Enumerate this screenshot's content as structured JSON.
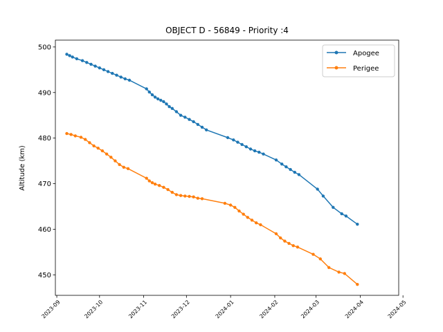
{
  "colors": {
    "apogee": "#1f77b4",
    "perigee": "#ff7f0e"
  },
  "chart_data": {
    "type": "line",
    "title": "OBJECT D - 56849 - Priority :4",
    "xlabel": "",
    "ylabel": "Altitude (km)",
    "xlim": [
      "2023-08-31",
      "2024-04-28"
    ],
    "ylim": [
      445.5,
      501.5
    ],
    "x_ticks": [
      "2023-09",
      "2023-10",
      "2023-11",
      "2023-12",
      "2024-01",
      "2024-02",
      "2024-03",
      "2024-04",
      "2024-05"
    ],
    "y_ticks": [
      450,
      460,
      470,
      480,
      490,
      500
    ],
    "legend": "top-right",
    "grid": false,
    "series": [
      {
        "name": "Apogee",
        "color": "#1f77b4",
        "points": [
          [
            "2023-09-08",
            498.4
          ],
          [
            "2023-09-10",
            498.1
          ],
          [
            "2023-09-12",
            497.8
          ],
          [
            "2023-09-15",
            497.4
          ],
          [
            "2023-09-19",
            497.0
          ],
          [
            "2023-09-22",
            496.6
          ],
          [
            "2023-09-25",
            496.2
          ],
          [
            "2023-09-28",
            495.8
          ],
          [
            "2023-10-01",
            495.4
          ],
          [
            "2023-10-04",
            495.0
          ],
          [
            "2023-10-07",
            494.6
          ],
          [
            "2023-10-10",
            494.2
          ],
          [
            "2023-10-13",
            493.8
          ],
          [
            "2023-10-16",
            493.4
          ],
          [
            "2023-10-19",
            493.0
          ],
          [
            "2023-10-22",
            492.7
          ],
          [
            "2023-11-03",
            490.8
          ],
          [
            "2023-11-05",
            490.1
          ],
          [
            "2023-11-07",
            489.5
          ],
          [
            "2023-11-09",
            489.0
          ],
          [
            "2023-11-11",
            488.6
          ],
          [
            "2023-11-13",
            488.3
          ],
          [
            "2023-11-15",
            488.0
          ],
          [
            "2023-11-17",
            487.5
          ],
          [
            "2023-11-19",
            486.9
          ],
          [
            "2023-11-21",
            486.5
          ],
          [
            "2023-11-24",
            485.8
          ],
          [
            "2023-11-27",
            485.0
          ],
          [
            "2023-11-30",
            484.6
          ],
          [
            "2023-12-03",
            484.1
          ],
          [
            "2023-12-06",
            483.6
          ],
          [
            "2023-12-09",
            483.0
          ],
          [
            "2023-12-12",
            482.4
          ],
          [
            "2023-12-15",
            481.8
          ],
          [
            "2023-12-30",
            480.1
          ],
          [
            "2024-01-03",
            479.6
          ],
          [
            "2024-01-06",
            479.1
          ],
          [
            "2024-01-09",
            478.6
          ],
          [
            "2024-01-12",
            478.1
          ],
          [
            "2024-01-15",
            477.6
          ],
          [
            "2024-01-18",
            477.2
          ],
          [
            "2024-01-21",
            476.9
          ],
          [
            "2024-01-24",
            476.5
          ],
          [
            "2024-02-02",
            475.2
          ],
          [
            "2024-02-06",
            474.3
          ],
          [
            "2024-02-09",
            473.7
          ],
          [
            "2024-02-12",
            473.1
          ],
          [
            "2024-02-15",
            472.5
          ],
          [
            "2024-02-18",
            472.0
          ],
          [
            "2024-03-02",
            468.8
          ],
          [
            "2024-03-06",
            467.3
          ],
          [
            "2024-03-13",
            464.8
          ],
          [
            "2024-03-19",
            463.4
          ],
          [
            "2024-03-22",
            462.9
          ],
          [
            "2024-03-30",
            461.1
          ]
        ]
      },
      {
        "name": "Perigee",
        "color": "#ff7f0e",
        "points": [
          [
            "2023-09-08",
            481.0
          ],
          [
            "2023-09-11",
            480.8
          ],
          [
            "2023-09-14",
            480.5
          ],
          [
            "2023-09-18",
            480.2
          ],
          [
            "2023-09-21",
            479.7
          ],
          [
            "2023-09-24",
            479.0
          ],
          [
            "2023-09-27",
            478.3
          ],
          [
            "2023-09-30",
            477.8
          ],
          [
            "2023-10-03",
            477.2
          ],
          [
            "2023-10-06",
            476.5
          ],
          [
            "2023-10-09",
            475.8
          ],
          [
            "2023-10-12",
            475.0
          ],
          [
            "2023-10-15",
            474.2
          ],
          [
            "2023-10-18",
            473.6
          ],
          [
            "2023-10-21",
            473.3
          ],
          [
            "2023-11-03",
            471.2
          ],
          [
            "2023-11-05",
            470.6
          ],
          [
            "2023-11-07",
            470.2
          ],
          [
            "2023-11-09",
            469.9
          ],
          [
            "2023-11-12",
            469.6
          ],
          [
            "2023-11-15",
            469.2
          ],
          [
            "2023-11-18",
            468.7
          ],
          [
            "2023-11-21",
            468.1
          ],
          [
            "2023-11-24",
            467.6
          ],
          [
            "2023-11-27",
            467.4
          ],
          [
            "2023-11-30",
            467.3
          ],
          [
            "2023-12-03",
            467.2
          ],
          [
            "2023-12-06",
            467.1
          ],
          [
            "2023-12-09",
            466.8
          ],
          [
            "2023-12-12",
            466.7
          ],
          [
            "2023-12-28",
            465.7
          ],
          [
            "2024-01-01",
            465.3
          ],
          [
            "2024-01-04",
            464.8
          ],
          [
            "2024-01-07",
            464.0
          ],
          [
            "2024-01-10",
            463.3
          ],
          [
            "2024-01-13",
            462.6
          ],
          [
            "2024-01-16",
            462.0
          ],
          [
            "2024-01-19",
            461.4
          ],
          [
            "2024-01-22",
            461.0
          ],
          [
            "2024-02-02",
            459.0
          ],
          [
            "2024-02-05",
            458.1
          ],
          [
            "2024-02-08",
            457.4
          ],
          [
            "2024-02-11",
            456.9
          ],
          [
            "2024-02-14",
            456.4
          ],
          [
            "2024-02-17",
            456.1
          ],
          [
            "2024-02-28",
            454.5
          ],
          [
            "2024-03-04",
            453.5
          ],
          [
            "2024-03-10",
            451.6
          ],
          [
            "2024-03-17",
            450.6
          ],
          [
            "2024-03-21",
            450.3
          ],
          [
            "2024-03-30",
            447.9
          ]
        ]
      }
    ]
  }
}
